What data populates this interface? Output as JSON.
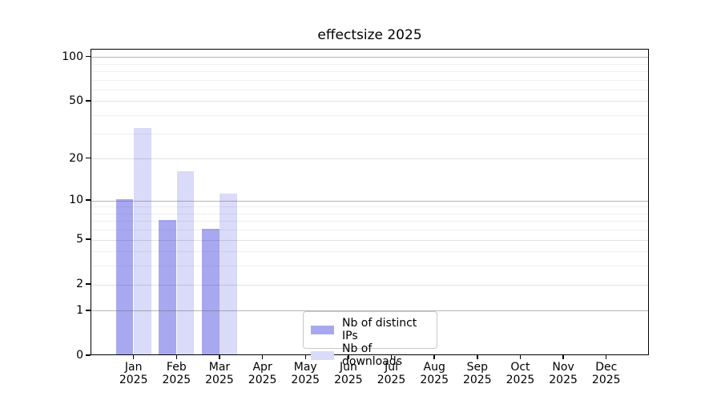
{
  "title": "effectsize 2025",
  "chart_data": {
    "type": "bar",
    "title": "effectsize 2025",
    "categories": [
      "Jan",
      "Feb",
      "Mar",
      "Apr",
      "May",
      "Jun",
      "Jul",
      "Aug",
      "Sep",
      "Oct",
      "Nov",
      "Dec"
    ],
    "category_year": "2025",
    "series": [
      {
        "name": "Nb of distinct IPs",
        "color": "#a8a8f0",
        "values": [
          10,
          7,
          6,
          0,
          0,
          0,
          0,
          0,
          0,
          0,
          0,
          0
        ]
      },
      {
        "name": "Nb of downloads",
        "color": "#dadaf9",
        "values": [
          32,
          16,
          11,
          0,
          0,
          0,
          0,
          0,
          0,
          0,
          0,
          0
        ]
      }
    ],
    "y_axis": {
      "scale": "log1p",
      "ticks": [
        0,
        1,
        2,
        5,
        10,
        20,
        50,
        100
      ],
      "decade_gridlines": [
        1,
        10,
        100
      ],
      "minor_gridlines": [
        3,
        4,
        6,
        7,
        8,
        9,
        30,
        40,
        60,
        70,
        80,
        90
      ],
      "ylim": [
        0,
        113
      ]
    },
    "xlabel": "",
    "ylabel": "",
    "grid": true,
    "legend_position": "bottom-center",
    "background_color": "#ffffff"
  }
}
